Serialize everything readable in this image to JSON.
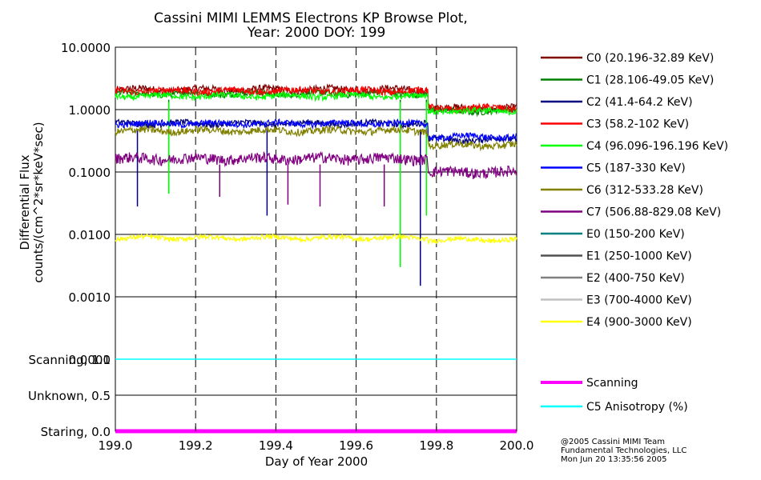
{
  "chart_data": {
    "type": "line",
    "title": "Cassini MIMI LEMMS Electrons KP Browse Plot,",
    "subtitle": "Year: 2000 DOY: 199",
    "xlabel": "Day of Year 2000",
    "ylabel_line1": "Differential Flux",
    "ylabel_line2": "counts/(cm^2*sr*keV*sec)",
    "xlim": [
      199.0,
      200.0
    ],
    "x_ticks": [
      "199.0",
      "199.2",
      "199.4",
      "199.6",
      "199.8",
      "200.0"
    ],
    "x_tick_values": [
      199.0,
      199.2,
      199.4,
      199.6,
      199.8,
      200.0
    ],
    "flux_axis": {
      "scale": "log",
      "ylim": [
        0.0001,
        10.0
      ],
      "ticks": [
        "10.0000",
        "1.0000",
        "0.1000",
        "0.0100",
        "0.0010",
        "0.0001"
      ],
      "tick_values": [
        10.0,
        1.0,
        0.1,
        0.01,
        0.001,
        0.0001
      ]
    },
    "state_axis": {
      "ylim": [
        0.0,
        1.0
      ],
      "ticks": [
        "Scanning, 1.0",
        "Unknown, 0.5",
        "Staring, 0.0"
      ],
      "tick_values": [
        1.0,
        0.5,
        0.0
      ]
    },
    "vertical_markers": [
      199.2,
      199.4,
      199.6,
      199.8
    ],
    "series": [
      {
        "name": "C0 (20.196-32.89 KeV)",
        "color": "#800000",
        "before": 2.1,
        "after": 1.05,
        "noise": 0.06,
        "gaps": []
      },
      {
        "name": "C1 (28.106-49.05 KeV)",
        "color": "#008000",
        "before": 1.8,
        "after": 0.95,
        "noise": 0.05,
        "gaps": [
          [
            199.133,
            0.045
          ],
          [
            199.71,
            0.003
          ],
          [
            199.775,
            0.02
          ]
        ]
      },
      {
        "name": "C2 (41.4-64.2 KeV)",
        "color": "#000080",
        "before": 0.6,
        "after": 0.33,
        "noise": 0.05,
        "gaps": [
          [
            199.055,
            0.028
          ],
          [
            199.378,
            0.02
          ],
          [
            199.76,
            0.0015
          ]
        ]
      },
      {
        "name": "C3 (58.2-102 KeV)",
        "color": "#ff0000",
        "before": 2.0,
        "after": 1.05,
        "noise": 0.06,
        "gaps": []
      },
      {
        "name": "C4 (96.096-196.196 KeV)",
        "color": "#00ff00",
        "before": 1.65,
        "after": 0.95,
        "noise": 0.05,
        "gaps": [
          [
            199.133,
            0.045
          ],
          [
            199.71,
            0.003
          ],
          [
            199.775,
            0.02
          ]
        ]
      },
      {
        "name": "C5 (187-330 KeV)",
        "color": "#0000ff",
        "before": 0.6,
        "after": 0.37,
        "noise": 0.05,
        "gaps": []
      },
      {
        "name": "C6 (312-533.28 KeV)",
        "color": "#808000",
        "before": 0.46,
        "after": 0.27,
        "noise": 0.06,
        "gaps": []
      },
      {
        "name": "C7 (506.88-829.08 KeV)",
        "color": "#800080",
        "before": 0.165,
        "after": 0.1,
        "noise": 0.09,
        "gaps": [
          [
            199.26,
            0.04
          ],
          [
            199.43,
            0.03
          ],
          [
            199.51,
            0.028
          ],
          [
            199.67,
            0.028
          ]
        ]
      },
      {
        "name": "E0 (150-200 KeV)",
        "color": "#008080",
        "before": null,
        "after": null,
        "noise": 0,
        "gaps": []
      },
      {
        "name": "E1 (250-1000 KeV)",
        "color": "#505050",
        "before": null,
        "after": null,
        "noise": 0,
        "gaps": []
      },
      {
        "name": "E2 (400-750 KeV)",
        "color": "#808080",
        "before": null,
        "after": null,
        "noise": 0,
        "gaps": []
      },
      {
        "name": "E3 (700-4000 KeV)",
        "color": "#c0c0c0",
        "before": null,
        "after": null,
        "noise": 0,
        "gaps": []
      },
      {
        "name": "E4 (900-3000 KeV)",
        "color": "#ffff00",
        "before": 0.0088,
        "after": 0.0082,
        "noise": 0.04,
        "gaps": []
      }
    ],
    "state_series": [
      {
        "name": "Scanning",
        "color": "#ff00ff",
        "value": 0.0
      },
      {
        "name": "C5 Anisotropy (%)",
        "color": "#00ffff",
        "value": 1.0
      }
    ],
    "step_time": 199.78
  },
  "credit": {
    "line1": "@2005 Cassini MIMI Team",
    "line2": "Fundamental Technologies, LLC",
    "line3": "Mon Jun 20 13:35:56 2005"
  }
}
